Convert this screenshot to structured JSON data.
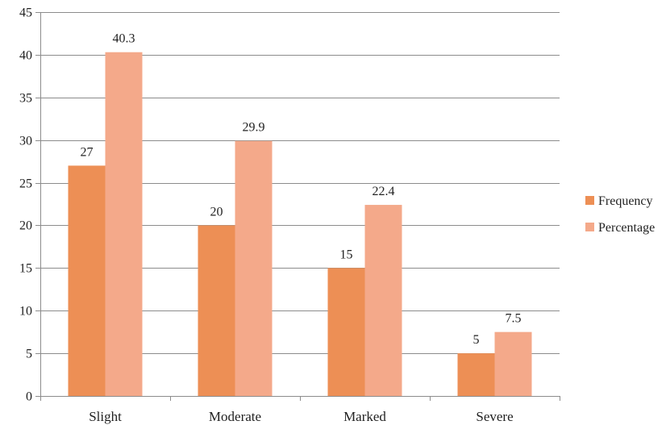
{
  "chart_data": {
    "type": "bar",
    "title": "",
    "xlabel": "",
    "ylabel": "",
    "categories": [
      "Slight",
      "Moderate",
      "Marked",
      "Severe"
    ],
    "series": [
      {
        "name": "Frequency",
        "values": [
          27,
          20,
          15,
          5
        ],
        "labels": [
          "27",
          "20",
          "15",
          "5"
        ],
        "color": "#ed8f55"
      },
      {
        "name": "Percentage",
        "values": [
          40.3,
          29.9,
          22.4,
          7.5
        ],
        "labels": [
          "40.3",
          "29.9",
          "22.4",
          "7.5"
        ],
        "color": "#f4a98a"
      }
    ],
    "ylim": [
      0,
      45
    ],
    "yticks": [
      "0",
      "5",
      "10",
      "15",
      "20",
      "25",
      "30",
      "35",
      "40",
      "45"
    ],
    "grid": true,
    "legend_position": "right"
  }
}
